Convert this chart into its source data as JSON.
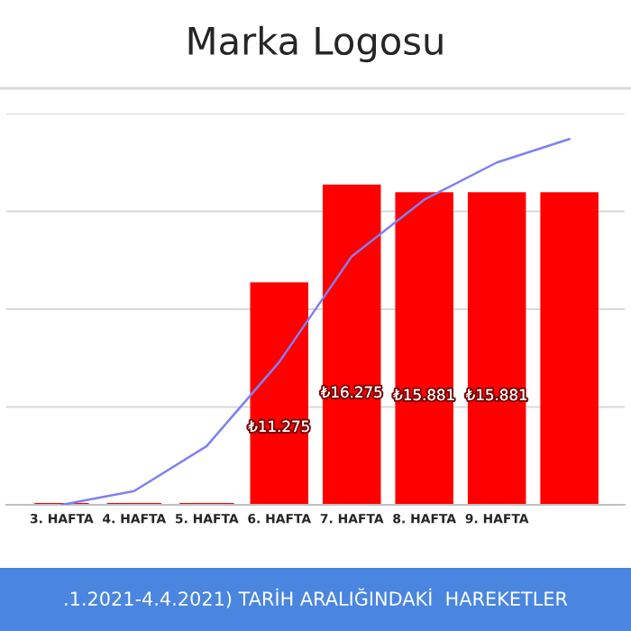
{
  "chart_data": {
    "type": "bar",
    "title": "Marka Logosu",
    "categories": [
      "3. HAFTA",
      "4. HAFTA",
      "5. HAFTA",
      "6. HAFTA",
      "7. HAFTA",
      "8. HAFTA",
      "9. HAFTA",
      null
    ],
    "series": [
      {
        "type": "bar",
        "color": "#ff0000",
        "values": [
          0,
          0,
          0,
          11275,
          16275,
          15881,
          15881,
          15881
        ],
        "value_labels": [
          null,
          null,
          null,
          "₺11.275",
          "₺16.275",
          "₺15.881",
          "₺15.881",
          null
        ]
      },
      {
        "type": "line",
        "color": "#8080f0",
        "x": [
          "3. HAFTA",
          "4. HAFTA",
          "5. HAFTA",
          "6. HAFTA",
          "7. HAFTA",
          "8. HAFTA",
          "9. HAFTA",
          null
        ],
        "values": [
          0,
          700,
          3000,
          7300,
          12700,
          15600,
          17500,
          18700
        ]
      }
    ],
    "ylim": [
      0,
      20000
    ],
    "yticks": [
      {
        "value": 0,
        "label": null
      },
      {
        "value": 5000,
        "label": null
      },
      {
        "value": 10000,
        "label": null
      },
      {
        "value": 15000,
        "label": null
      },
      {
        "value": 20000,
        "label": null
      }
    ],
    "tick_labels": "x",
    "grid": "y",
    "annotations": [
      ".1.2021-4.4.2021) TARİH ARALIĞINDAKİ  HAREKETLER"
    ]
  }
}
